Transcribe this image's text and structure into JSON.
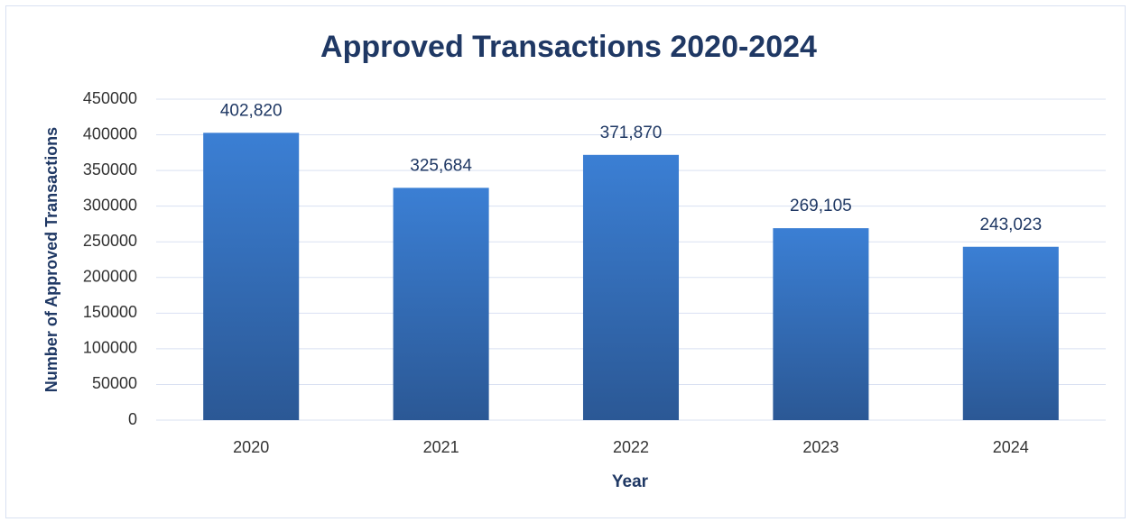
{
  "chart_data": {
    "type": "bar",
    "title": "Approved Transactions 2020-2024",
    "x_label": "Year",
    "y_label": "Number of Approved Transactions",
    "categories": [
      "2020",
      "2021",
      "2022",
      "2023",
      "2024"
    ],
    "values": [
      402820,
      325684,
      371870,
      269105,
      243023
    ],
    "value_labels": [
      "402,820",
      "325,684",
      "371,870",
      "269,105",
      "243,023"
    ],
    "color": "#3674c4",
    "ylim": [
      0,
      450000
    ],
    "yticks": [
      0,
      50000,
      100000,
      150000,
      200000,
      250000,
      300000,
      350000,
      400000,
      450000
    ],
    "grid": true
  }
}
